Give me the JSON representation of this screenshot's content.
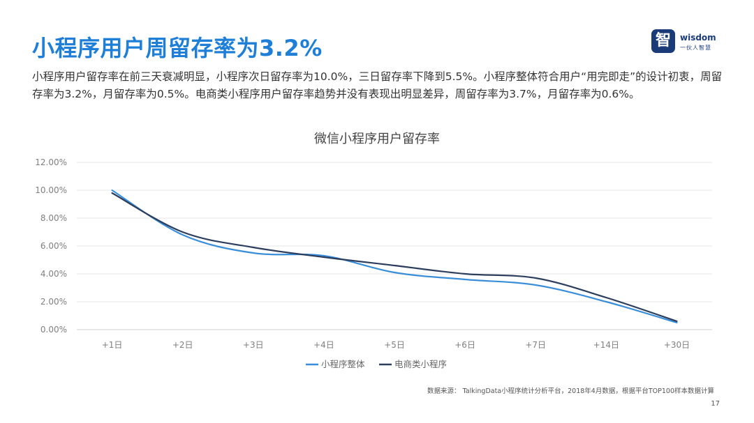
{
  "headline": "小程序用户周留存率为3.2%",
  "logo": {
    "glyph": "智",
    "word": "wisdom",
    "sub": "一伙人智慧"
  },
  "summary": "小程序用户留存率在前三天衰减明显，小程序次日留存率为10.0%，三日留存率下降到5.5%。小程序整体符合用户“用完即走”的设计初衷，周留存率为3.2%，月留存率为0.5%。电商类小程序用户留存率趋势并没有表现出明显差异，周留存率为3.7%，月留存率为0.6%。",
  "source": "数据来源：  TalkingData小程序统计分析平台，2018年4月数据，根据平台TOP100样本数据计算",
  "page_number": "17",
  "chart_data": {
    "type": "line",
    "title": "微信小程序用户留存率",
    "categories": [
      "+1日",
      "+2日",
      "+3日",
      "+4日",
      "+5日",
      "+6日",
      "+7日",
      "+14日",
      "+30日"
    ],
    "ylim": [
      0,
      12
    ],
    "yticks": [
      "0.00%",
      "2.00%",
      "4.00%",
      "6.00%",
      "8.00%",
      "10.00%",
      "12.00%"
    ],
    "grid": true,
    "legend_position": "bottom",
    "series": [
      {
        "name": "小程序整体",
        "color": "#3a8ed8",
        "values": [
          10.0,
          6.8,
          5.5,
          5.3,
          4.1,
          3.6,
          3.2,
          2.0,
          0.5
        ]
      },
      {
        "name": "电商类小程序",
        "color": "#2c3e5c",
        "values": [
          9.8,
          7.0,
          5.9,
          5.2,
          4.6,
          4.0,
          3.7,
          2.3,
          0.6
        ]
      }
    ]
  }
}
